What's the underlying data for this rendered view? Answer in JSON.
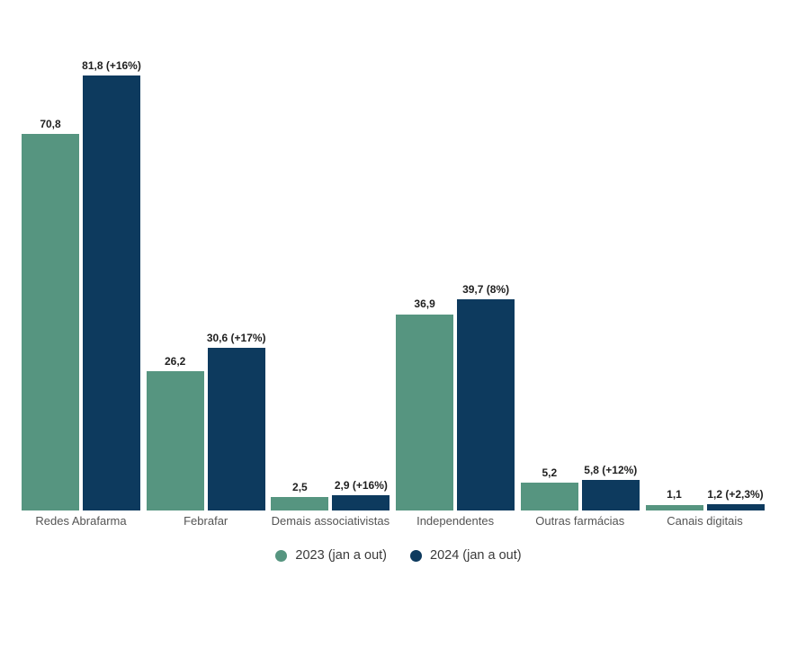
{
  "chart_data": {
    "type": "bar",
    "title": "",
    "xlabel": "",
    "ylabel": "",
    "ylim": [
      0,
      85
    ],
    "grid": false,
    "legend_position": "bottom",
    "value_label_decimal_style": "comma",
    "categories": [
      "Redes Abrafarma",
      "Febrafar",
      "Demais associativistas",
      "Independentes",
      "Outras farmácias",
      "Canais digitais"
    ],
    "series": [
      {
        "name": "2023 (jan a out)",
        "color": "#569580",
        "values": [
          70.8,
          26.2,
          2.5,
          36.9,
          5.2,
          1.1
        ],
        "labels": [
          "70,8",
          "26,2",
          "2,5",
          "36,9",
          "5,2",
          "1,1"
        ]
      },
      {
        "name": "2024 (jan a out)",
        "color": "#0d3a5e",
        "values": [
          81.8,
          30.6,
          2.9,
          39.7,
          5.8,
          1.2
        ],
        "labels": [
          "81,8 (+16%)",
          "30,6 (+17%)",
          "2,9 (+16%)",
          "39,7 (8%)",
          "5,8 (+12%)",
          "1,2 (+2,3%)"
        ]
      }
    ]
  }
}
